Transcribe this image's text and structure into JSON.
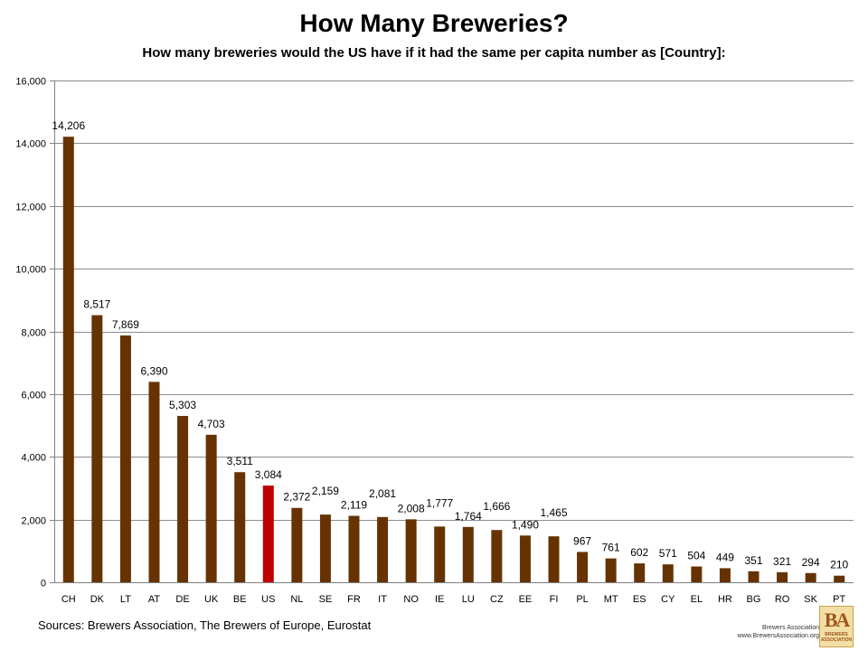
{
  "chart_data": {
    "type": "bar",
    "title": "How Many Breweries?",
    "subtitle": "How many breweries would the US have if it had the same per capita number as [Country]:",
    "categories": [
      "CH",
      "DK",
      "LT",
      "AT",
      "DE",
      "UK",
      "BE",
      "US",
      "NL",
      "SE",
      "FR",
      "IT",
      "NO",
      "IE",
      "LU",
      "CZ",
      "EE",
      "FI",
      "PL",
      "MT",
      "ES",
      "CY",
      "EL",
      "HR",
      "BG",
      "RO",
      "SK",
      "PT"
    ],
    "values": [
      14206,
      8517,
      7869,
      6390,
      5303,
      4703,
      3511,
      3084,
      2372,
      2159,
      2119,
      2081,
      2008,
      1777,
      1764,
      1666,
      1490,
      1465,
      967,
      761,
      602,
      571,
      504,
      449,
      351,
      321,
      294,
      210
    ],
    "data_labels": [
      "14,206",
      "8,517",
      "7,869",
      "6,390",
      "5,303",
      "4,703",
      "3,511",
      "3,084",
      "2,372",
      "2,159",
      "2,119",
      "2,081",
      "2,008",
      "1,777",
      "1,764",
      "1,666",
      "1,490",
      "1,465",
      "967",
      "761",
      "602",
      "571",
      "504",
      "449",
      "351",
      "321",
      "294",
      "210"
    ],
    "highlight_category": "US",
    "ylim": [
      0,
      16000
    ],
    "yticks": [
      0,
      2000,
      4000,
      6000,
      8000,
      10000,
      12000,
      14000,
      16000
    ],
    "ytick_labels": [
      "0",
      "2,000",
      "4,000",
      "6,000",
      "8,000",
      "10,000",
      "12,000",
      "14,000",
      "16,000"
    ],
    "grid": true,
    "xlabel": "",
    "ylabel": "",
    "colors": {
      "bar": "#663300",
      "highlight": "#c00000",
      "grid": "#8c8c8c",
      "axis": "#808080"
    }
  },
  "footer": {
    "source": "Sources: Brewers Association, The Brewers of Europe, Eurostat",
    "logo_line1": "Brewers Association",
    "logo_line2": "www.BrewersAssociation.org",
    "logo_mark": "BA",
    "logo_word1": "BREWERS",
    "logo_word2": "ASSOCIATION"
  }
}
